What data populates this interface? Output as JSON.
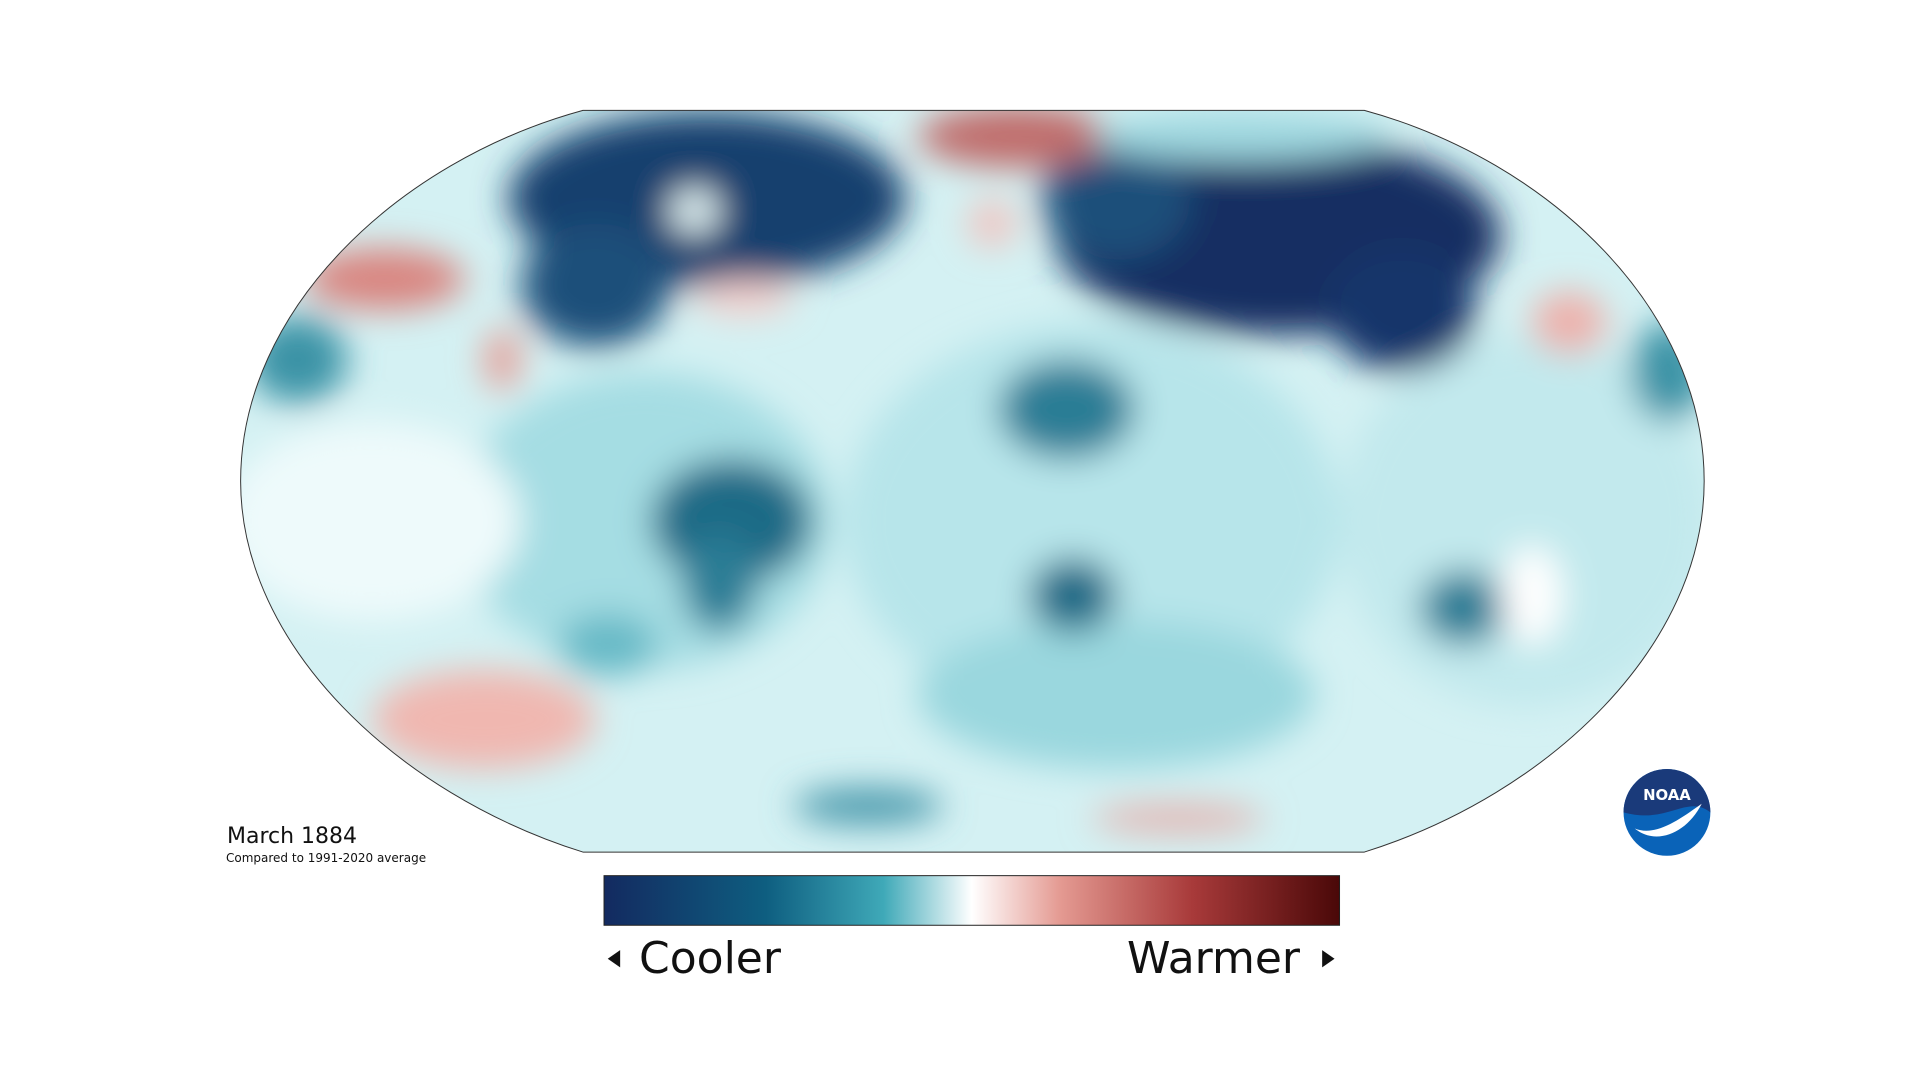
{
  "map": {
    "title": "March 1884",
    "subtitle": "Compared to 1991-2020 average",
    "legend": {
      "low": "Cooler",
      "high": "Warmer"
    },
    "logo": "NOAA"
  }
}
